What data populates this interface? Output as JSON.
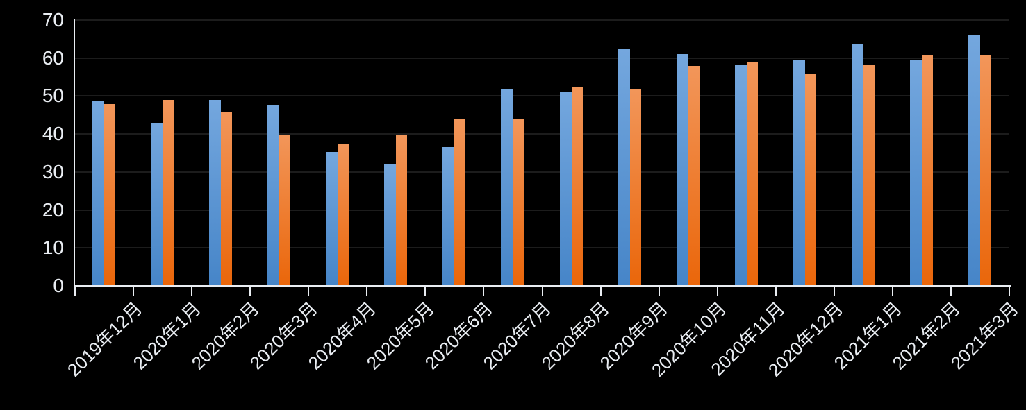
{
  "chart_data": {
    "type": "bar",
    "title": "",
    "xlabel": "",
    "ylabel": "",
    "categories": [
      "2019年12月",
      "2020年1月",
      "2020年2月",
      "2020年3月",
      "2020年4月",
      "2020年5月",
      "2020年6月",
      "2020年7月",
      "2020年8月",
      "2020年9月",
      "2020年10月",
      "2020年11月",
      "2020年12月",
      "2021年1月",
      "2021年2月",
      "2021年3月"
    ],
    "series": [
      {
        "name": "blue-series",
        "color_top": "#74A7DE",
        "color_bottom": "#4685C8",
        "values": [
          48.7,
          42.7,
          48.9,
          47.6,
          35.2,
          32.1,
          36.5,
          51.8,
          51.1,
          62.3,
          61.0,
          58.2,
          59.4,
          63.8,
          59.4,
          66.2
        ]
      },
      {
        "name": "orange-series",
        "color_top": "#F2965A",
        "color_bottom": "#EA660A",
        "values": [
          47.8,
          48.9,
          45.8,
          39.8,
          37.5,
          39.8,
          43.8,
          43.8,
          52.5,
          52.0,
          57.9,
          58.9,
          55.9,
          58.3,
          60.9,
          60.9
        ]
      }
    ],
    "ylim": [
      0,
      70
    ],
    "y_ticks": [
      0,
      10,
      20,
      30,
      40,
      50,
      60,
      70
    ],
    "grid": "horizontal",
    "legend": "none",
    "background_color": "#000000",
    "axis_color": "#e9edf2",
    "gridline_color": "#1c1c1c",
    "label_color": "#e9edf2"
  }
}
